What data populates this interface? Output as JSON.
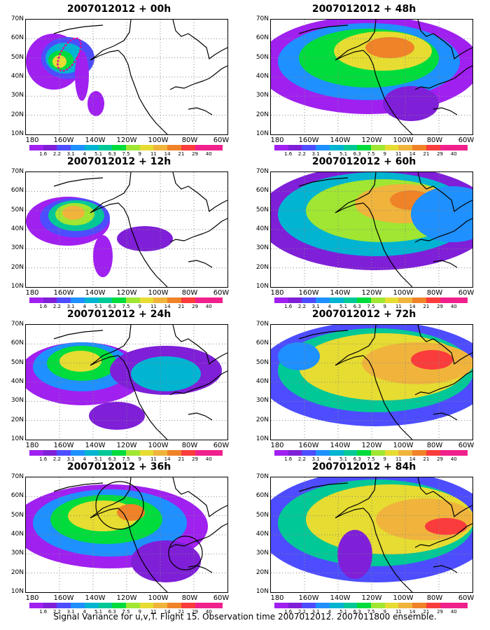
{
  "caption": "Signal Variance for u,v,T. Flight 15. Observation time 2007012012. 2007011800 ensemble.",
  "panels": [
    {
      "title": "2007012012 + 00h"
    },
    {
      "title": "2007012012 + 12h"
    },
    {
      "title": "2007012012 + 24h"
    },
    {
      "title": "2007012012 + 36h"
    },
    {
      "title": "2007012012 + 48h"
    },
    {
      "title": "2007012012 + 60h"
    },
    {
      "title": "2007012012 + 72h"
    },
    {
      "title": "2007012012 + 84h"
    }
  ],
  "lat_labels": [
    "70N",
    "60N",
    "50N",
    "40N",
    "30N",
    "20N",
    "10N"
  ],
  "lon_labels": [
    "180",
    "160W",
    "140W",
    "120W",
    "100W",
    "80W",
    "60W"
  ],
  "colorbar": {
    "labels": [
      "1.6",
      "2.2",
      "3.1",
      "4",
      "5.1",
      "6.3",
      "7.5",
      "9",
      "11",
      "14",
      "21",
      "29",
      "40"
    ],
    "colors": [
      "#a020f0",
      "#7f1fd8",
      "#4d4dff",
      "#1e90ff",
      "#00b4d2",
      "#00c896",
      "#00dc3c",
      "#a0e632",
      "#e6dc32",
      "#f0b43c",
      "#f08228",
      "#fa3c3c",
      "#f0208c"
    ]
  }
}
